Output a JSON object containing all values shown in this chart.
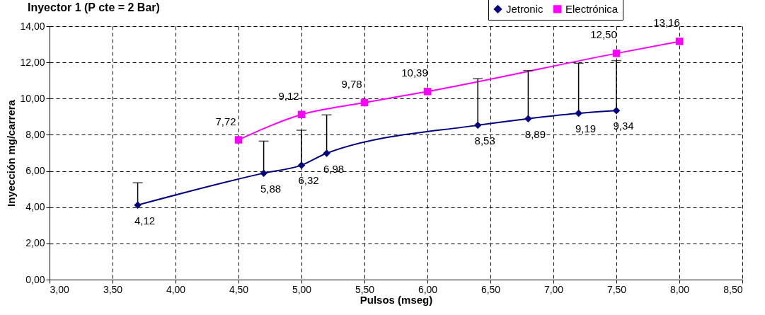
{
  "chart_data": {
    "type": "line",
    "title": "Inyector 1 (P cte = 2 Bar)",
    "xlabel": "Pulsos (mseg)",
    "ylabel": "Inyección mg/carrera",
    "xlim": [
      3.0,
      8.5
    ],
    "xticks": [
      {
        "value": 3.0,
        "label": "3,00"
      },
      {
        "value": 3.5,
        "label": "3,50"
      },
      {
        "value": 4.0,
        "label": "4,00"
      },
      {
        "value": 4.5,
        "label": "4,50"
      },
      {
        "value": 5.0,
        "label": "5,00"
      },
      {
        "value": 5.5,
        "label": "5,50"
      },
      {
        "value": 6.0,
        "label": "6,00"
      },
      {
        "value": 6.5,
        "label": "6,50"
      },
      {
        "value": 7.0,
        "label": "7,00"
      },
      {
        "value": 7.5,
        "label": "7,50"
      },
      {
        "value": 8.0,
        "label": "8,00"
      },
      {
        "value": 8.5,
        "label": "8,50"
      }
    ],
    "ylim": [
      0,
      14
    ],
    "yticks": [
      {
        "value": 0,
        "label": "0,00"
      },
      {
        "value": 2,
        "label": "2,00"
      },
      {
        "value": 4,
        "label": "4,00"
      },
      {
        "value": 6,
        "label": "6,00"
      },
      {
        "value": 8,
        "label": "8,00"
      },
      {
        "value": 10,
        "label": "10,00"
      },
      {
        "value": 12,
        "label": "12,00"
      },
      {
        "value": 14,
        "label": "14,00"
      }
    ],
    "grid": true,
    "legend": "top right",
    "line_style": "solid",
    "series": [
      {
        "name": "Jetronic",
        "color": "#000080",
        "marker": "diamond",
        "x": [
          3.7,
          4.7,
          5.0,
          5.2,
          6.4,
          6.8,
          7.2,
          7.5
        ],
        "values": [
          4.12,
          5.88,
          6.32,
          6.98,
          8.53,
          8.89,
          9.19,
          9.34
        ],
        "value_labels": [
          "4,12",
          "5,88",
          "6,32",
          "6,98",
          "8,53",
          "8,89",
          "9,19",
          "9,34"
        ],
        "errors": [
          [
            4.12,
            5.35
          ],
          [
            5.88,
            7.65
          ],
          [
            6.32,
            8.25
          ],
          [
            6.98,
            9.1
          ],
          [
            8.53,
            11.1
          ],
          [
            8.89,
            11.55
          ],
          [
            9.19,
            11.95
          ],
          [
            9.34,
            12.1
          ]
        ]
      },
      {
        "name": "Electrónica",
        "color": "#ff00ff",
        "marker": "square",
        "x": [
          4.5,
          5.0,
          5.5,
          6.0,
          7.5,
          8.0
        ],
        "values": [
          7.72,
          9.12,
          9.78,
          10.39,
          12.5,
          13.16
        ],
        "value_labels": [
          "7,72",
          "9,12",
          "9,78",
          "10,39",
          "12,50",
          "13,16"
        ]
      }
    ]
  }
}
